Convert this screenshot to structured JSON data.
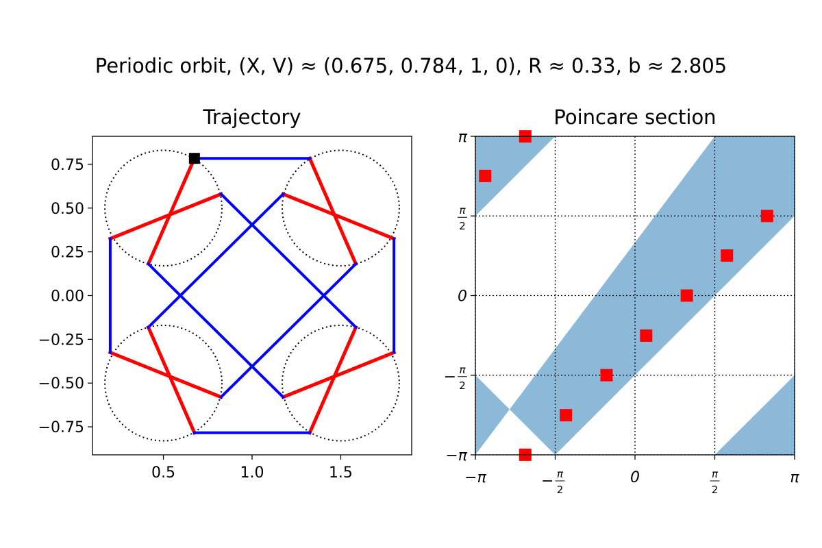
{
  "figure": {
    "suptitle": "Periodic orbit,  (X, V) ≈ (0.675, 0.784, 1, 0), R ≈ 0.33, b ≈ 2.805"
  },
  "colors": {
    "red_segments": "#ff0000",
    "blue_segments": "#0000ff",
    "start_marker": "#000000",
    "band_fill": "#8db9d8",
    "section_points": "#ff0000"
  },
  "chart_data": [
    {
      "type": "line",
      "title": "Trajectory",
      "xlabel": "",
      "ylabel": "",
      "xlim": [
        0.1,
        1.9
      ],
      "ylim": [
        -0.91,
        0.91
      ],
      "xticks": [
        0.5,
        1.0,
        1.5
      ],
      "xtick_labels": [
        "0.5",
        "1.0",
        "1.5"
      ],
      "yticks": [
        0.75,
        0.5,
        0.25,
        0.0,
        -0.25,
        -0.5,
        -0.75
      ],
      "ytick_labels": [
        "0.75",
        "0.50",
        "0.25",
        "0.00",
        "−0.25",
        "−0.50",
        "−0.75"
      ],
      "grid": false,
      "obstacles": [
        {
          "cx": 0.5,
          "cy": 0.5,
          "r": 0.33
        },
        {
          "cx": 1.5,
          "cy": 0.5,
          "r": 0.33
        },
        {
          "cx": 0.5,
          "cy": -0.5,
          "r": 0.33
        },
        {
          "cx": 1.5,
          "cy": -0.5,
          "r": 0.33
        }
      ],
      "start_point": {
        "x": 0.675,
        "y": 0.784
      },
      "series": [
        {
          "color_key": "red_segments",
          "segments": [
            [
              [
                0.675,
                0.784
              ],
              [
                0.415,
                0.181
              ]
            ],
            [
              [
                0.2,
                0.325
              ],
              [
                0.825,
                0.58
              ]
            ],
            [
              [
                1.325,
                0.784
              ],
              [
                1.585,
                0.181
              ]
            ],
            [
              [
                1.175,
                0.58
              ],
              [
                1.8,
                0.325
              ]
            ],
            [
              [
                0.415,
                -0.181
              ],
              [
                0.675,
                -0.784
              ]
            ],
            [
              [
                0.2,
                -0.325
              ],
              [
                0.825,
                -0.58
              ]
            ],
            [
              [
                1.585,
                -0.181
              ],
              [
                1.325,
                -0.784
              ]
            ],
            [
              [
                1.8,
                -0.325
              ],
              [
                1.175,
                -0.58
              ]
            ]
          ]
        },
        {
          "color_key": "blue_segments",
          "segments": [
            [
              [
                0.675,
                0.784
              ],
              [
                1.325,
                0.784
              ]
            ],
            [
              [
                0.2,
                0.325
              ],
              [
                0.2,
                -0.325
              ]
            ],
            [
              [
                1.8,
                0.325
              ],
              [
                1.8,
                -0.325
              ]
            ],
            [
              [
                0.675,
                -0.784
              ],
              [
                1.325,
                -0.784
              ]
            ],
            [
              [
                0.825,
                0.58
              ],
              [
                1.585,
                -0.181
              ]
            ],
            [
              [
                1.175,
                0.58
              ],
              [
                0.415,
                -0.181
              ]
            ],
            [
              [
                0.415,
                0.181
              ],
              [
                1.175,
                -0.58
              ]
            ],
            [
              [
                1.585,
                0.181
              ],
              [
                0.825,
                -0.58
              ]
            ]
          ]
        }
      ]
    },
    {
      "type": "scatter",
      "title": "Poincare section",
      "xlabel": "",
      "ylabel": "",
      "xlim": [
        -3.14159,
        3.14159
      ],
      "ylim": [
        -3.14159,
        3.14159
      ],
      "ticks": [
        -3.14159,
        -1.5708,
        0,
        1.5708,
        3.14159
      ],
      "tick_labels": [
        {
          "kind": "text",
          "text": "−π"
        },
        {
          "kind": "frac",
          "sign": "−",
          "num": "π",
          "den": "2"
        },
        {
          "kind": "text",
          "text": "0"
        },
        {
          "kind": "frac",
          "sign": "",
          "num": "π",
          "den": "2"
        },
        {
          "kind": "text",
          "text": "π"
        }
      ],
      "grid": true,
      "grid_style": "dotted",
      "bands": [
        [
          [
            -3.14159,
            -1.5708
          ],
          [
            -1.5708,
            -3.14159
          ],
          [
            3.14159,
            1.5708
          ],
          [
            3.14159,
            3.14159
          ],
          [
            1.5708,
            3.14159
          ],
          [
            -3.14159,
            -3.14159
          ]
        ],
        [
          [
            -3.14159,
            1.5708
          ],
          [
            -1.5708,
            3.14159
          ],
          [
            -3.14159,
            3.14159
          ]
        ],
        [
          [
            1.5708,
            -3.14159
          ],
          [
            3.14159,
            -3.14159
          ],
          [
            3.14159,
            -1.5708
          ]
        ]
      ],
      "points": [
        {
          "x": -2.95,
          "y": 2.36
        },
        {
          "x": -2.16,
          "y": 3.14
        },
        {
          "x": -1.36,
          "y": -2.36
        },
        {
          "x": -0.56,
          "y": -1.57
        },
        {
          "x": 0.22,
          "y": -0.79
        },
        {
          "x": 1.02,
          "y": 0.0
        },
        {
          "x": 1.81,
          "y": 0.79
        },
        {
          "x": 2.6,
          "y": 1.57
        },
        {
          "x": -2.16,
          "y": -3.14
        }
      ]
    }
  ]
}
